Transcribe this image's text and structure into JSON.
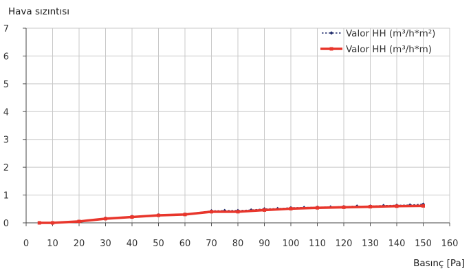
{
  "chart_data": {
    "type": "line",
    "title": "Hava sızıntısı",
    "xlabel": "Basınç [Pa]",
    "ylabel": "",
    "xlim": [
      0,
      160
    ],
    "ylim": [
      0,
      7
    ],
    "x_ticks": [
      0,
      10,
      20,
      30,
      40,
      50,
      60,
      70,
      80,
      90,
      100,
      110,
      120,
      130,
      140,
      150,
      160
    ],
    "y_ticks": [
      0,
      1,
      2,
      3,
      4,
      5,
      6,
      7
    ],
    "grid": true,
    "legend_position": "top-right",
    "series": [
      {
        "name": "Valor HH (m³/h*m²)",
        "color": "#1f2a6b",
        "style": "dotted-markers",
        "x": [
          5,
          10,
          20,
          30,
          40,
          50,
          60,
          70,
          75,
          80,
          85,
          90,
          95,
          100,
          105,
          110,
          115,
          120,
          125,
          130,
          135,
          140,
          145,
          150
        ],
        "y": [
          0.0,
          0.0,
          0.05,
          0.16,
          0.23,
          0.28,
          0.31,
          0.43,
          0.44,
          0.44,
          0.46,
          0.5,
          0.51,
          0.54,
          0.55,
          0.56,
          0.57,
          0.58,
          0.6,
          0.6,
          0.62,
          0.63,
          0.64,
          0.67
        ]
      },
      {
        "name": "Valor HH (m³/h*m)",
        "color": "#e8362c",
        "style": "solid-thick",
        "x": [
          5,
          10,
          20,
          30,
          40,
          50,
          60,
          70,
          80,
          90,
          100,
          110,
          120,
          130,
          140,
          150
        ],
        "y": [
          0.0,
          0.0,
          0.05,
          0.15,
          0.21,
          0.27,
          0.3,
          0.4,
          0.4,
          0.46,
          0.51,
          0.54,
          0.56,
          0.58,
          0.6,
          0.61
        ]
      }
    ]
  }
}
